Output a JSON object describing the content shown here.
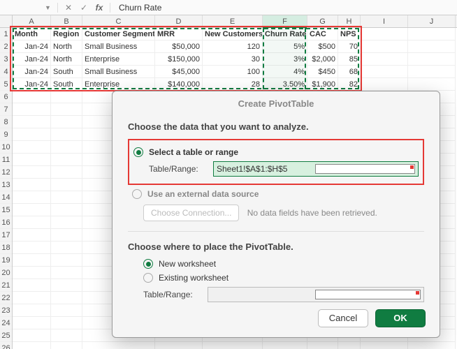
{
  "formula_bar": {
    "name_box": "",
    "content": "Churn Rate"
  },
  "columns": [
    {
      "letter": "A",
      "width": 55
    },
    {
      "letter": "B",
      "width": 45
    },
    {
      "letter": "C",
      "width": 104
    },
    {
      "letter": "D",
      "width": 68
    },
    {
      "letter": "E",
      "width": 86
    },
    {
      "letter": "F",
      "width": 64
    },
    {
      "letter": "G",
      "width": 44
    },
    {
      "letter": "H",
      "width": 32
    },
    {
      "letter": "I",
      "width": 68
    },
    {
      "letter": "J",
      "width": 68
    }
  ],
  "active_column": "F",
  "data": {
    "headers": [
      "Month",
      "Region",
      "Customer Segment",
      "MRR",
      "New Customers",
      "Churn Rate",
      "CAC",
      "NPS"
    ],
    "rows": [
      [
        "Jan-24",
        "North",
        "Small Business",
        "$50,000",
        "120",
        "5%",
        "$500",
        "70"
      ],
      [
        "Jan-24",
        "North",
        "Enterprise",
        "$150,000",
        "30",
        "3%",
        "$2,000",
        "85"
      ],
      [
        "Jan-24",
        "South",
        "Small Business",
        "$45,000",
        "100",
        "4%",
        "$450",
        "68"
      ],
      [
        "Jan-24",
        "South",
        "Enterprise",
        "$140,000",
        "28",
        "3.50%",
        "$1,900",
        "82"
      ]
    ],
    "right_align_cols": [
      0,
      3,
      4,
      5,
      6,
      7
    ]
  },
  "row_count": 30,
  "dialog": {
    "title": "Create PivotTable",
    "section1": "Choose the data that you want to analyze.",
    "opt_select_range": "Select a table or range",
    "table_range_label": "Table/Range:",
    "table_range_value": "Sheet1!$A$1:$H$5",
    "opt_external": "Use an external data source",
    "choose_connection": "Choose Connection...",
    "no_fields": "No data fields have been retrieved.",
    "section2": "Choose where to place the PivotTable.",
    "opt_new_ws": "New worksheet",
    "opt_existing_ws": "Existing worksheet",
    "table_range_label2": "Table/Range:",
    "cancel": "Cancel",
    "ok": "OK"
  },
  "colors": {
    "accent": "#107c41",
    "highlight_red": "#e53935"
  }
}
